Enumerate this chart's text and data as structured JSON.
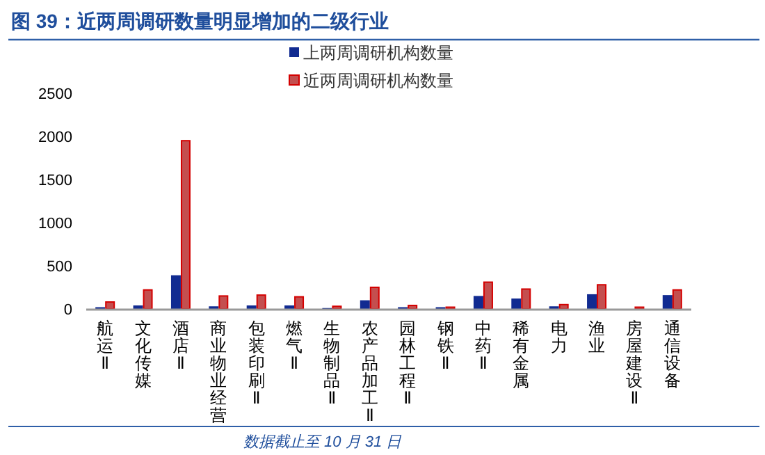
{
  "chart_data": {
    "type": "bar",
    "title": "图 39：近两周调研数量明显增加的二级行业",
    "categories": [
      "航运Ⅱ",
      "文化传媒",
      "酒店Ⅱ",
      "商业物业经营",
      "包装印刷Ⅱ",
      "燃气Ⅱ",
      "生物制品Ⅱ",
      "农产品加工Ⅱ",
      "园林工程Ⅱ",
      "钢铁Ⅱ",
      "中药Ⅱ",
      "稀有金属",
      "电力",
      "渔业",
      "房屋建设Ⅱ",
      "通信设备"
    ],
    "series": [
      {
        "name": "上两周调研机构数量",
        "color": "#112b91",
        "values": [
          20,
          40,
          390,
          30,
          40,
          40,
          10,
          100,
          20,
          20,
          150,
          120,
          30,
          170,
          0,
          160
        ]
      },
      {
        "name": "近两周调研机构数量",
        "color": "#c44f4f",
        "values": [
          80,
          220,
          1950,
          150,
          160,
          140,
          30,
          250,
          40,
          20,
          310,
          230,
          50,
          280,
          20,
          220
        ]
      }
    ],
    "ylim": [
      0,
      2500
    ],
    "yticks": [
      0,
      500,
      1000,
      1500,
      2000,
      2500
    ],
    "legend": "top",
    "annotations": [
      "数据截止至 10 月 31 日"
    ]
  }
}
